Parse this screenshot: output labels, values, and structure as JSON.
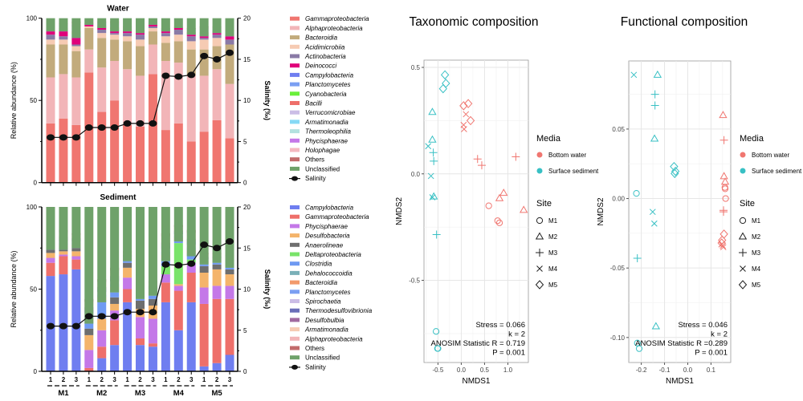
{
  "chart_data": [
    {
      "type": "bar",
      "stacked": true,
      "title": "Water",
      "ylabel": "Relative abundance (%)",
      "y2label": "Salinity (‰)",
      "ylim": [
        0,
        100
      ],
      "y2lim": [
        0,
        20
      ],
      "yticks": [
        "0",
        "50",
        "100"
      ],
      "y2ticks": [
        "0",
        "5",
        "10",
        "15",
        "20"
      ],
      "samples": [
        "1",
        "2",
        "3",
        "1",
        "2",
        "3",
        "1",
        "2",
        "3",
        "1",
        "2",
        "3",
        "1",
        "2",
        "3"
      ],
      "groups": [
        "M1",
        "M2",
        "M3",
        "M4",
        "M5"
      ],
      "series": [
        {
          "name": "Gammaproteobacteria",
          "color": "#f07670",
          "values": [
            36,
            39,
            35,
            67,
            43,
            50,
            35,
            34,
            66,
            32,
            36,
            25,
            31,
            38,
            27
          ]
        },
        {
          "name": "Alphaproteobacteria",
          "color": "#f2b5b8",
          "values": [
            28,
            27,
            29,
            14,
            27,
            24,
            34,
            31,
            18,
            42,
            37,
            40,
            34,
            31,
            33
          ]
        },
        {
          "name": "Bacteroidia",
          "color": "#c2ab7c",
          "values": [
            20,
            18,
            16,
            13,
            18,
            13,
            17,
            18,
            8,
            11,
            13,
            16,
            16,
            14,
            24
          ]
        },
        {
          "name": "Acidimicrobiia",
          "color": "#f6cbb3",
          "values": [
            3,
            3,
            3,
            1,
            3,
            3,
            3,
            4,
            2,
            4,
            4,
            5,
            6,
            5,
            0
          ]
        },
        {
          "name": "Actinobacteria",
          "color": "#8a7aa6",
          "values": [
            3,
            2,
            1,
            0,
            2,
            1,
            2,
            3,
            1,
            2,
            3,
            3,
            1,
            2,
            3
          ]
        },
        {
          "name": "Deinococci",
          "color": "#e0007a",
          "values": [
            2,
            3,
            4,
            1,
            1,
            1,
            1,
            1,
            1,
            1,
            1,
            1,
            1,
            1,
            2
          ]
        },
        {
          "name": "Campylobacteria",
          "color": "#6f7ef0",
          "values": []
        },
        {
          "name": "Planctomycetes",
          "color": "#7b9ff2",
          "values": []
        },
        {
          "name": "Cyanobacteria",
          "color": "#6af03a",
          "values": []
        },
        {
          "name": "Bacilli",
          "color": "#ee6f6a",
          "values": []
        },
        {
          "name": "Verrucomicrobiae",
          "color": "#cbbde6",
          "values": []
        },
        {
          "name": "Armatimonadia",
          "color": "#86d9f5",
          "values": []
        },
        {
          "name": "Thermoleophilia",
          "color": "#b4e2e0",
          "values": []
        },
        {
          "name": "Phycisphaerae",
          "color": "#c478e8",
          "values": []
        },
        {
          "name": "Holophagae",
          "color": "#f4b9c0",
          "values": []
        },
        {
          "name": "Others",
          "color": "#c26b6b",
          "values": []
        },
        {
          "name": "Unclassified",
          "color": "#6fa26a",
          "values": [
            3,
            3,
            2,
            1,
            2,
            2,
            5,
            5,
            2,
            6,
            5,
            6,
            5,
            5,
            7
          ]
        }
      ],
      "salinity": {
        "name": "Salinity",
        "values": [
          5.5,
          5.5,
          5.5,
          6.7,
          6.7,
          6.7,
          7.2,
          7.2,
          7.2,
          13.0,
          12.9,
          13.1,
          15.4,
          15.0,
          15.8
        ]
      }
    },
    {
      "type": "bar",
      "stacked": true,
      "title": "Sediment",
      "ylabel": "Relative abundance (%)",
      "y2label": "Salinity (‰)",
      "ylim": [
        0,
        100
      ],
      "y2lim": [
        0,
        20
      ],
      "yticks": [
        "0",
        "50",
        "100"
      ],
      "y2ticks": [
        "0",
        "5",
        "10",
        "15",
        "20"
      ],
      "samples": [
        "1",
        "2",
        "3",
        "1",
        "2",
        "3",
        "1",
        "2",
        "3",
        "1",
        "2",
        "3",
        "1",
        "2",
        "3"
      ],
      "groups": [
        "M1",
        "M2",
        "M3",
        "M4",
        "M5"
      ],
      "series": [
        {
          "name": "Campylobacteria",
          "color": "#6f7ef0",
          "values": [
            58,
            59,
            62,
            0,
            8,
            16,
            42,
            16,
            15,
            42,
            25,
            42,
            3,
            5,
            10
          ]
        },
        {
          "name": "Gammaproteobacteria",
          "color": "#ee6f6a",
          "values": [
            8,
            11,
            6,
            2,
            7,
            15,
            8,
            4,
            2,
            12,
            24,
            18,
            38,
            39,
            34
          ]
        },
        {
          "name": "Phycisphaerae",
          "color": "#c478e8",
          "values": [
            3,
            1,
            2,
            11,
            10,
            6,
            7,
            13,
            15,
            5,
            3,
            6,
            10,
            8,
            8
          ]
        },
        {
          "name": "Desulfobacteria",
          "color": "#f4b46b",
          "values": [
            3,
            2,
            3,
            9,
            7,
            4,
            6,
            5,
            8,
            0,
            1,
            0,
            9,
            10,
            7
          ]
        },
        {
          "name": "Anaerolineae",
          "color": "#6e6e6e",
          "values": [
            2,
            1,
            2,
            4,
            0,
            4,
            3,
            5,
            4,
            0,
            0,
            0,
            4,
            3,
            3
          ]
        },
        {
          "name": "Deltaproteobacteria",
          "color": "#79e36a",
          "values": [
            0,
            0,
            0,
            0,
            0,
            0,
            0,
            0,
            0,
            5,
            25,
            2,
            0,
            0,
            0
          ]
        },
        {
          "name": "Clostridia",
          "color": "#6f9af2",
          "values": [
            0,
            0,
            0,
            3,
            10,
            3,
            1,
            1,
            2,
            3,
            1,
            2,
            1,
            1,
            1
          ]
        },
        {
          "name": "Dehalococcoidia",
          "color": "#7ab0b8",
          "values": []
        },
        {
          "name": "Bacteroidia",
          "color": "#f29a6c",
          "values": []
        },
        {
          "name": "Planctomycetes",
          "color": "#7b9ff2",
          "values": []
        },
        {
          "name": "Spirochaetia",
          "color": "#cbbde6",
          "values": []
        },
        {
          "name": "Thermodesulfovibrionia",
          "color": "#6a6eb8",
          "values": []
        },
        {
          "name": "Desulfobulbia",
          "color": "#a16aa0",
          "values": []
        },
        {
          "name": "Armatimonadia",
          "color": "#f6cbb3",
          "values": []
        },
        {
          "name": "Alphaproteobacteria",
          "color": "#f2b5b8",
          "values": []
        },
        {
          "name": "Others",
          "color": "#c26b6b",
          "values": []
        },
        {
          "name": "Unclassified",
          "color": "#6fa26a",
          "values": [
            16,
            14,
            16,
            56,
            44,
            37,
            27,
            42,
            45,
            16,
            11,
            14,
            28,
            28,
            29
          ]
        }
      ],
      "salinity": {
        "name": "Salinity",
        "values": [
          5.5,
          5.5,
          5.5,
          6.7,
          6.7,
          6.7,
          7.2,
          7.2,
          7.2,
          13.0,
          12.9,
          13.1,
          15.4,
          15.0,
          15.8
        ]
      }
    },
    {
      "type": "scatter",
      "title": "Taxonomic composition",
      "xlabel": "NMDS1",
      "ylabel": "NMDS2",
      "xlim": [
        -0.8,
        1.44
      ],
      "ylim": [
        -0.886,
        0.534
      ],
      "xticks": [
        -0.5,
        0.0,
        0.5,
        1.0
      ],
      "xtick_labels": [
        "-0.5",
        "0.0",
        "0.5",
        "1.0"
      ],
      "yticks": [
        -0.5,
        0.0,
        0.5
      ],
      "ytick_labels": [
        "-0.5",
        "0.0",
        "0.5"
      ],
      "grid": true,
      "annotations": [
        "Stress = 0.066",
        "k = 2",
        "ANOSIM Statistic R = 0.719",
        "P = 0.001"
      ],
      "points": [
        {
          "media": "Surface sediment",
          "site": "M5",
          "x": -0.35,
          "y": 0.465
        },
        {
          "media": "Surface sediment",
          "site": "M5",
          "x": -0.33,
          "y": 0.425
        },
        {
          "media": "Surface sediment",
          "site": "M5",
          "x": -0.39,
          "y": 0.4
        },
        {
          "media": "Surface sediment",
          "site": "M2",
          "x": -0.62,
          "y": 0.29
        },
        {
          "media": "Surface sediment",
          "site": "M2",
          "x": -0.62,
          "y": 0.16
        },
        {
          "media": "Surface sediment",
          "site": "M2",
          "x": -0.59,
          "y": -0.107
        },
        {
          "media": "Surface sediment",
          "site": "M3",
          "x": -0.6,
          "y": 0.1
        },
        {
          "media": "Surface sediment",
          "site": "M3",
          "x": -0.59,
          "y": 0.06
        },
        {
          "media": "Surface sediment",
          "site": "M3",
          "x": -0.53,
          "y": -0.285
        },
        {
          "media": "Surface sediment",
          "site": "M4",
          "x": -0.71,
          "y": 0.13
        },
        {
          "media": "Surface sediment",
          "site": "M4",
          "x": -0.65,
          "y": -0.01
        },
        {
          "media": "Surface sediment",
          "site": "M4",
          "x": -0.62,
          "y": -0.11
        },
        {
          "media": "Surface sediment",
          "site": "M1",
          "x": -0.54,
          "y": -0.74
        },
        {
          "media": "Surface sediment",
          "site": "M1",
          "x": -0.51,
          "y": -0.82
        },
        {
          "media": "Surface sediment",
          "site": "M1",
          "x": -0.5,
          "y": -0.82
        },
        {
          "media": "Bottom water",
          "site": "M5",
          "x": 0.05,
          "y": 0.32
        },
        {
          "media": "Bottom water",
          "site": "M5",
          "x": 0.15,
          "y": 0.33
        },
        {
          "media": "Bottom water",
          "site": "M5",
          "x": 0.2,
          "y": 0.25
        },
        {
          "media": "Bottom water",
          "site": "M4",
          "x": 0.1,
          "y": 0.28
        },
        {
          "media": "Bottom water",
          "site": "M4",
          "x": 0.05,
          "y": 0.23
        },
        {
          "media": "Bottom water",
          "site": "M4",
          "x": 0.06,
          "y": 0.21
        },
        {
          "media": "Bottom water",
          "site": "M3",
          "x": 0.35,
          "y": 0.07
        },
        {
          "media": "Bottom water",
          "site": "M3",
          "x": 0.44,
          "y": 0.04
        },
        {
          "media": "Bottom water",
          "site": "M3",
          "x": 1.17,
          "y": 0.08
        },
        {
          "media": "Bottom water",
          "site": "M2",
          "x": 0.82,
          "y": -0.115
        },
        {
          "media": "Bottom water",
          "site": "M2",
          "x": 0.91,
          "y": -0.09
        },
        {
          "media": "Bottom water",
          "site": "M2",
          "x": 1.34,
          "y": -0.17
        },
        {
          "media": "Bottom water",
          "site": "M1",
          "x": 0.59,
          "y": -0.15
        },
        {
          "media": "Bottom water",
          "site": "M1",
          "x": 0.78,
          "y": -0.22
        },
        {
          "media": "Bottom water",
          "site": "M1",
          "x": 0.82,
          "y": -0.23
        }
      ]
    },
    {
      "type": "scatter",
      "title": "Functional composition",
      "xlabel": "NMDS1",
      "ylabel": "NMDS2",
      "xlim": [
        -0.254,
        0.185
      ],
      "ylim": [
        -0.118,
        0.099
      ],
      "xticks": [
        -0.2,
        -0.1,
        0.0,
        0.1
      ],
      "xtick_labels": [
        "-0.2",
        "-0.1",
        "0.0",
        "0.1"
      ],
      "yticks": [
        -0.1,
        -0.05,
        0.0,
        0.05
      ],
      "ytick_labels": [
        "-0.10",
        "-0.05",
        "0.00",
        "0.05"
      ],
      "grid": true,
      "annotations": [
        "Stress = 0.046",
        "k = 2",
        "ANOSIM Statistic R =0.289",
        "P = 0.001"
      ],
      "points": [
        {
          "media": "Surface sediment",
          "site": "M4",
          "x": -0.232,
          "y": 0.089
        },
        {
          "media": "Surface sediment",
          "site": "M4",
          "x": -0.151,
          "y": -0.0096
        },
        {
          "media": "Surface sediment",
          "site": "M4",
          "x": -0.144,
          "y": -0.018
        },
        {
          "media": "Surface sediment",
          "site": "M2",
          "x": -0.13,
          "y": 0.089
        },
        {
          "media": "Surface sediment",
          "site": "M2",
          "x": -0.143,
          "y": 0.043
        },
        {
          "media": "Surface sediment",
          "site": "M2",
          "x": -0.137,
          "y": -0.092
        },
        {
          "media": "Surface sediment",
          "site": "M3",
          "x": -0.141,
          "y": 0.075
        },
        {
          "media": "Surface sediment",
          "site": "M3",
          "x": -0.141,
          "y": 0.067
        },
        {
          "media": "Surface sediment",
          "site": "M3",
          "x": -0.217,
          "y": -0.043
        },
        {
          "media": "Surface sediment",
          "site": "M5",
          "x": -0.059,
          "y": 0.023
        },
        {
          "media": "Surface sediment",
          "site": "M5",
          "x": -0.053,
          "y": 0.0196
        },
        {
          "media": "Surface sediment",
          "site": "M5",
          "x": -0.056,
          "y": 0.018
        },
        {
          "media": "Surface sediment",
          "site": "M1",
          "x": -0.221,
          "y": 0.0037
        },
        {
          "media": "Surface sediment",
          "site": "M1",
          "x": -0.217,
          "y": -0.104
        },
        {
          "media": "Surface sediment",
          "site": "M1",
          "x": -0.209,
          "y": -0.108
        },
        {
          "media": "Bottom water",
          "site": "M2",
          "x": 0.152,
          "y": 0.06
        },
        {
          "media": "Bottom water",
          "site": "M2",
          "x": 0.156,
          "y": 0.016
        },
        {
          "media": "Bottom water",
          "site": "M2",
          "x": 0.161,
          "y": 0.012
        },
        {
          "media": "Bottom water",
          "site": "M3",
          "x": 0.156,
          "y": 0.042
        },
        {
          "media": "Bottom water",
          "site": "M3",
          "x": 0.154,
          "y": -0.0085
        },
        {
          "media": "Bottom water",
          "site": "M3",
          "x": 0.154,
          "y": -0.0096
        },
        {
          "media": "Bottom water",
          "site": "M1",
          "x": 0.163,
          "y": 0.0
        },
        {
          "media": "Bottom water",
          "site": "M1",
          "x": 0.16,
          "y": 0.008
        },
        {
          "media": "Bottom water",
          "site": "M1",
          "x": 0.161,
          "y": 0.007
        },
        {
          "media": "Bottom water",
          "site": "M5",
          "x": 0.156,
          "y": -0.0256
        },
        {
          "media": "Bottom water",
          "site": "M5",
          "x": 0.148,
          "y": -0.03
        },
        {
          "media": "Bottom water",
          "site": "M5",
          "x": 0.146,
          "y": -0.032
        },
        {
          "media": "Bottom water",
          "site": "M4",
          "x": 0.151,
          "y": -0.034
        },
        {
          "media": "Bottom water",
          "site": "M4",
          "x": 0.145,
          "y": -0.033
        },
        {
          "media": "Bottom water",
          "site": "M4",
          "x": 0.153,
          "y": -0.035
        }
      ]
    }
  ],
  "legend": {
    "media_title": "Media",
    "media": [
      {
        "name": "Bottom water",
        "color": "#f07670"
      },
      {
        "name": "Surface sediment",
        "color": "#38c0c4"
      }
    ],
    "site_title": "Site",
    "sites": [
      {
        "name": "M1",
        "shape": "circle"
      },
      {
        "name": "M2",
        "shape": "triangle"
      },
      {
        "name": "M3",
        "shape": "plus"
      },
      {
        "name": "M4",
        "shape": "cross"
      },
      {
        "name": "M5",
        "shape": "diamond"
      }
    ]
  }
}
